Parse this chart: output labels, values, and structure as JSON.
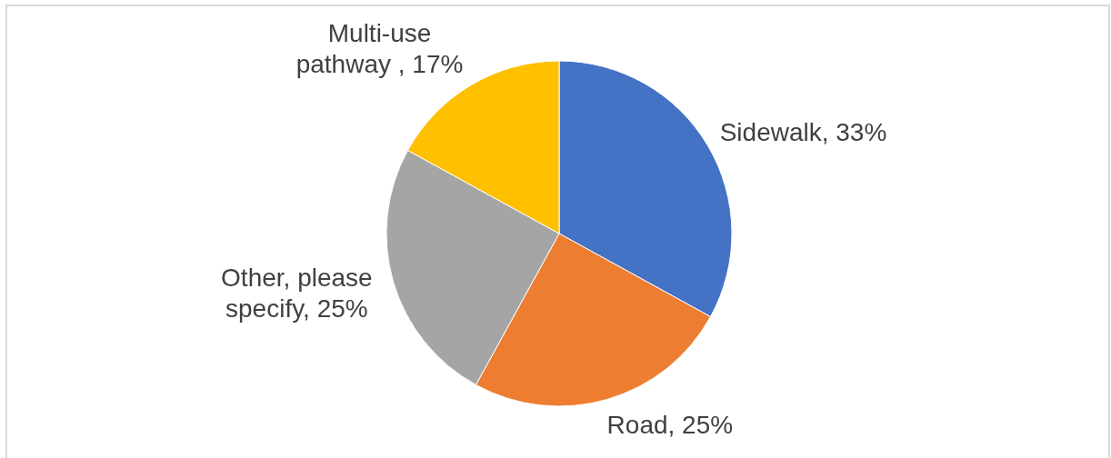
{
  "chart_data": {
    "type": "pie",
    "categories": [
      "Sidewalk",
      "Road",
      "Other, please specify",
      "Multi-use pathway "
    ],
    "values": [
      33,
      25,
      25,
      17
    ],
    "colors": [
      "#4472c4",
      "#ed7d31",
      "#a5a5a5",
      "#ffc000"
    ],
    "value_labels": [
      "33%",
      "25%",
      "25%",
      "17%"
    ],
    "legend": false
  }
}
